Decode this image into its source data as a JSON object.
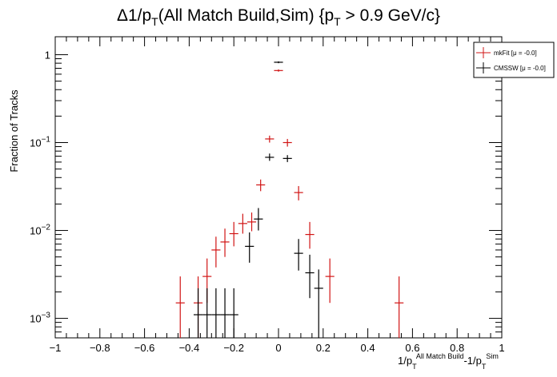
{
  "chart_data": {
    "type": "scatter",
    "title_parts": {
      "delta": "Δ1/p",
      "sub1": "T",
      "mid": "(All Match Build,Sim) {p",
      "sub2": "T",
      "end": " > 0.9 GeV/c}"
    },
    "ylabel": "Fraction of Tracks",
    "xlabel_parts": {
      "a": "1/p",
      "a_sub": "T",
      "a_sup": "All Match Build",
      "b": "-1/p",
      "b_sub": "T",
      "b_sup": "Sim"
    },
    "xlim": [
      -1,
      1
    ],
    "ylim": [
      0.0006,
      1.6
    ],
    "yscale": "log",
    "grid": false,
    "legend_position": "top-right",
    "x_tick_labels": [
      "−1",
      "−0.8",
      "−0.6",
      "−0.4",
      "−0.2",
      "0",
      "0.2",
      "0.4",
      "0.6",
      "0.8",
      "1"
    ],
    "y_tick_labels": [
      {
        "base": "1",
        "exp": ""
      },
      {
        "base": "10",
        "exp": "−1"
      },
      {
        "base": "10",
        "exp": "−2"
      },
      {
        "base": "10",
        "exp": "−3"
      }
    ],
    "series": [
      {
        "name": "mkFit",
        "legend_label": "mkFit  [μ = -0.0]",
        "color": "#d11414",
        "points": [
          {
            "x": -0.44,
            "y": 0.0015,
            "ylo": 0.0006,
            "yhi": 0.003,
            "xerr": 0.02
          },
          {
            "x": -0.36,
            "y": 0.0015,
            "ylo": 0.0006,
            "yhi": 0.003,
            "xerr": 0.02
          },
          {
            "x": -0.32,
            "y": 0.003,
            "ylo": 0.0015,
            "yhi": 0.0048,
            "xerr": 0.02
          },
          {
            "x": -0.28,
            "y": 0.006,
            "ylo": 0.0038,
            "yhi": 0.0085,
            "xerr": 0.02
          },
          {
            "x": -0.24,
            "y": 0.0074,
            "ylo": 0.005,
            "yhi": 0.0105,
            "xerr": 0.02
          },
          {
            "x": -0.2,
            "y": 0.0092,
            "ylo": 0.0066,
            "yhi": 0.0125,
            "xerr": 0.02
          },
          {
            "x": -0.16,
            "y": 0.012,
            "ylo": 0.0092,
            "yhi": 0.0155,
            "xerr": 0.02
          },
          {
            "x": -0.12,
            "y": 0.0125,
            "ylo": 0.0098,
            "yhi": 0.016,
            "xerr": 0.02
          },
          {
            "x": -0.08,
            "y": 0.033,
            "ylo": 0.028,
            "yhi": 0.038,
            "xerr": 0.02
          },
          {
            "x": -0.04,
            "y": 0.11,
            "ylo": 0.1,
            "yhi": 0.12,
            "xerr": 0.02
          },
          {
            "x": 0.0,
            "y": 0.66,
            "ylo": 0.64,
            "yhi": 0.68,
            "xerr": 0.02
          },
          {
            "x": 0.04,
            "y": 0.1,
            "ylo": 0.09,
            "yhi": 0.11,
            "xerr": 0.02
          },
          {
            "x": 0.09,
            "y": 0.027,
            "ylo": 0.022,
            "yhi": 0.032,
            "xerr": 0.02
          },
          {
            "x": 0.14,
            "y": 0.009,
            "ylo": 0.0062,
            "yhi": 0.0125,
            "xerr": 0.02
          },
          {
            "x": 0.23,
            "y": 0.003,
            "ylo": 0.0015,
            "yhi": 0.0048,
            "xerr": 0.02
          },
          {
            "x": 0.54,
            "y": 0.0015,
            "ylo": 0.0006,
            "yhi": 0.003,
            "xerr": 0.02
          }
        ]
      },
      {
        "name": "CMSSW",
        "legend_label": "CMSSW  [μ = -0.0]",
        "color": "#000000",
        "points": [
          {
            "x": -0.36,
            "y": 0.0011,
            "ylo": 0.0006,
            "yhi": 0.0022,
            "xerr": 0.02
          },
          {
            "x": -0.32,
            "y": 0.0011,
            "ylo": 0.0006,
            "yhi": 0.0022,
            "xerr": 0.02
          },
          {
            "x": -0.28,
            "y": 0.0011,
            "ylo": 0.0006,
            "yhi": 0.0022,
            "xerr": 0.02
          },
          {
            "x": -0.24,
            "y": 0.0011,
            "ylo": 0.0006,
            "yhi": 0.0022,
            "xerr": 0.02
          },
          {
            "x": -0.2,
            "y": 0.0011,
            "ylo": 0.0006,
            "yhi": 0.0022,
            "xerr": 0.02
          },
          {
            "x": -0.13,
            "y": 0.0066,
            "ylo": 0.0043,
            "yhi": 0.0095,
            "xerr": 0.02
          },
          {
            "x": -0.09,
            "y": 0.0135,
            "ylo": 0.01,
            "yhi": 0.018,
            "xerr": 0.02
          },
          {
            "x": -0.04,
            "y": 0.068,
            "ylo": 0.062,
            "yhi": 0.075,
            "xerr": 0.02
          },
          {
            "x": 0.0,
            "y": 0.82,
            "ylo": 0.8,
            "yhi": 0.84,
            "xerr": 0.02
          },
          {
            "x": 0.04,
            "y": 0.066,
            "ylo": 0.06,
            "yhi": 0.072,
            "xerr": 0.02
          },
          {
            "x": 0.09,
            "y": 0.0055,
            "ylo": 0.0035,
            "yhi": 0.008,
            "xerr": 0.02
          },
          {
            "x": 0.14,
            "y": 0.0033,
            "ylo": 0.0017,
            "yhi": 0.0053,
            "xerr": 0.02
          },
          {
            "x": 0.18,
            "y": 0.0022,
            "ylo": 0.0006,
            "yhi": 0.0036,
            "xerr": 0.02
          }
        ]
      }
    ]
  }
}
